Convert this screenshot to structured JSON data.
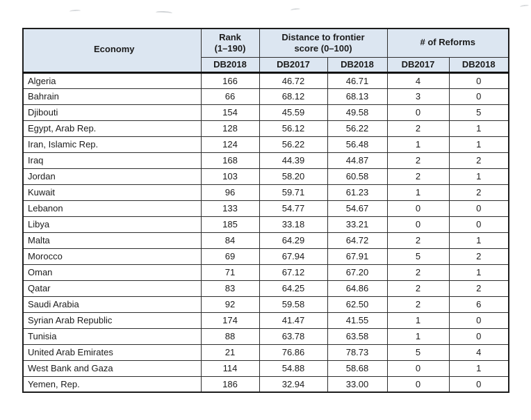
{
  "colors": {
    "header_bg": "#dce6f1",
    "border": "#1c1c1c",
    "text": "#1b1b1b"
  },
  "table": {
    "header": {
      "economy": "Economy",
      "rank": {
        "line1": "Rank",
        "line2": "(1–190)"
      },
      "dtf": {
        "line1": "Distance to frontier",
        "line2": "score (0–100)"
      },
      "reforms": "# of Reforms",
      "subheaders": [
        "DB2018",
        "DB2017",
        "DB2018",
        "DB2017",
        "DB2018"
      ]
    },
    "rows": [
      {
        "economy": "Algeria",
        "rank_db2018": "166",
        "dtf_db2017": "46.72",
        "dtf_db2018": "46.71",
        "reforms_db2017": "4",
        "reforms_db2018": "0"
      },
      {
        "economy": "Bahrain",
        "rank_db2018": "66",
        "dtf_db2017": "68.12",
        "dtf_db2018": "68.13",
        "reforms_db2017": "3",
        "reforms_db2018": "0"
      },
      {
        "economy": "Djibouti",
        "rank_db2018": "154",
        "dtf_db2017": "45.59",
        "dtf_db2018": "49.58",
        "reforms_db2017": "0",
        "reforms_db2018": "5"
      },
      {
        "economy": "Egypt, Arab Rep.",
        "rank_db2018": "128",
        "dtf_db2017": "56.12",
        "dtf_db2018": "56.22",
        "reforms_db2017": "2",
        "reforms_db2018": "1"
      },
      {
        "economy": "Iran, Islamic Rep.",
        "rank_db2018": "124",
        "dtf_db2017": "56.22",
        "dtf_db2018": "56.48",
        "reforms_db2017": "1",
        "reforms_db2018": "1"
      },
      {
        "economy": "Iraq",
        "rank_db2018": "168",
        "dtf_db2017": "44.39",
        "dtf_db2018": "44.87",
        "reforms_db2017": "2",
        "reforms_db2018": "2"
      },
      {
        "economy": "Jordan",
        "rank_db2018": "103",
        "dtf_db2017": "58.20",
        "dtf_db2018": "60.58",
        "reforms_db2017": "2",
        "reforms_db2018": "1"
      },
      {
        "economy": "Kuwait",
        "rank_db2018": "96",
        "dtf_db2017": "59.71",
        "dtf_db2018": "61.23",
        "reforms_db2017": "1",
        "reforms_db2018": "2"
      },
      {
        "economy": "Lebanon",
        "rank_db2018": "133",
        "dtf_db2017": "54.77",
        "dtf_db2018": "54.67",
        "reforms_db2017": "0",
        "reforms_db2018": "0"
      },
      {
        "economy": "Libya",
        "rank_db2018": "185",
        "dtf_db2017": "33.18",
        "dtf_db2018": "33.21",
        "reforms_db2017": "0",
        "reforms_db2018": "0"
      },
      {
        "economy": "Malta",
        "rank_db2018": "84",
        "dtf_db2017": "64.29",
        "dtf_db2018": "64.72",
        "reforms_db2017": "2",
        "reforms_db2018": "1"
      },
      {
        "economy": "Morocco",
        "rank_db2018": "69",
        "dtf_db2017": "67.94",
        "dtf_db2018": "67.91",
        "reforms_db2017": "5",
        "reforms_db2018": "2"
      },
      {
        "economy": "Oman",
        "rank_db2018": "71",
        "dtf_db2017": "67.12",
        "dtf_db2018": "67.20",
        "reforms_db2017": "2",
        "reforms_db2018": "1"
      },
      {
        "economy": "Qatar",
        "rank_db2018": "83",
        "dtf_db2017": "64.25",
        "dtf_db2018": "64.86",
        "reforms_db2017": "2",
        "reforms_db2018": "2"
      },
      {
        "economy": "Saudi Arabia",
        "rank_db2018": "92",
        "dtf_db2017": "59.58",
        "dtf_db2018": "62.50",
        "reforms_db2017": "2",
        "reforms_db2018": "6"
      },
      {
        "economy": "Syrian Arab Republic",
        "rank_db2018": "174",
        "dtf_db2017": "41.47",
        "dtf_db2018": "41.55",
        "reforms_db2017": "1",
        "reforms_db2018": "0"
      },
      {
        "economy": "Tunisia",
        "rank_db2018": "88",
        "dtf_db2017": "63.78",
        "dtf_db2018": "63.58",
        "reforms_db2017": "1",
        "reforms_db2018": "0"
      },
      {
        "economy": "United Arab Emirates",
        "rank_db2018": "21",
        "dtf_db2017": "76.86",
        "dtf_db2018": "78.73",
        "reforms_db2017": "5",
        "reforms_db2018": "4"
      },
      {
        "economy": "West Bank and Gaza",
        "rank_db2018": "114",
        "dtf_db2017": "54.88",
        "dtf_db2018": "58.68",
        "reforms_db2017": "0",
        "reforms_db2018": "1"
      },
      {
        "economy": "Yemen, Rep.",
        "rank_db2018": "186",
        "dtf_db2017": "32.94",
        "dtf_db2018": "33.00",
        "reforms_db2017": "0",
        "reforms_db2018": "0"
      }
    ]
  }
}
